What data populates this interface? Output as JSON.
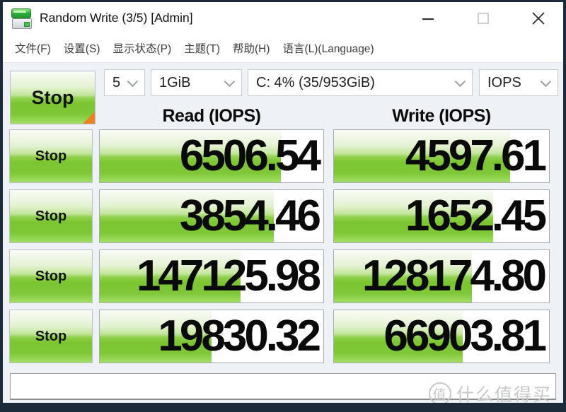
{
  "window": {
    "title": "Random Write (3/5) [Admin]",
    "app_icon": "crystaldiskmark-disk-icon"
  },
  "menu": {
    "items": [
      "文件(F)",
      "设置(S)",
      "显示状态(P)",
      "主题(T)",
      "帮助(H)",
      "语言(L)(Language)"
    ]
  },
  "toolbar": {
    "stop_label": "Stop",
    "test_count": "5",
    "test_size": "1GiB",
    "target_drive": "C: 4% (35/953GiB)",
    "unit": "IOPS"
  },
  "columns": {
    "read": "Read (IOPS)",
    "write": "Write (IOPS)"
  },
  "results": {
    "rows": [
      {
        "button": "Stop",
        "read": {
          "value": "6506.54",
          "fill_pct": 81
        },
        "write": {
          "value": "4597.61",
          "fill_pct": 82
        }
      },
      {
        "button": "Stop",
        "read": {
          "value": "3854.46",
          "fill_pct": 78
        },
        "write": {
          "value": "1652.45",
          "fill_pct": 74
        }
      },
      {
        "button": "Stop",
        "read": {
          "value": "147125.98",
          "fill_pct": 63
        },
        "write": {
          "value": "128174.80",
          "fill_pct": 64
        }
      },
      {
        "button": "Stop",
        "read": {
          "value": "19830.32",
          "fill_pct": 50
        },
        "write": {
          "value": "66903.81",
          "fill_pct": 60
        }
      }
    ]
  },
  "watermark": {
    "badge": "值",
    "text": "什么值得买"
  },
  "colors": {
    "accent_green": "#7cc531",
    "corner_orange": "#ee8222",
    "frame_dark": "#1c2b3a",
    "body_bg": "#eef1f5",
    "watermark_gray": "#c6c8ca"
  }
}
